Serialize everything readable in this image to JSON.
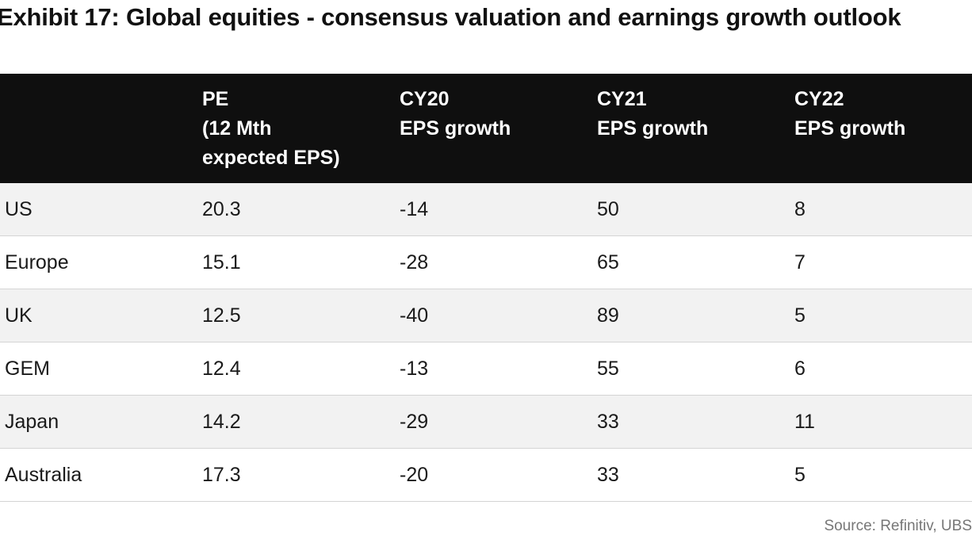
{
  "title": "Exhibit 17: Global equities - consensus valuation and earnings growth outlook",
  "table": {
    "headers": [
      "",
      "PE\n(12 Mth\nexpected EPS)",
      "CY20\nEPS growth",
      "CY21\nEPS growth",
      "CY22\nEPS growth"
    ],
    "rows": [
      [
        "US",
        "20.3",
        "-14",
        "50",
        "8"
      ],
      [
        "Europe",
        "15.1",
        "-28",
        "65",
        "7"
      ],
      [
        "UK",
        "12.5",
        "-40",
        "89",
        "5"
      ],
      [
        "GEM",
        "12.4",
        "-13",
        "55",
        "6"
      ],
      [
        "Japan",
        "14.2",
        "-29",
        "33",
        "11"
      ],
      [
        "Australia",
        "17.3",
        "-20",
        "33",
        "5"
      ]
    ]
  },
  "source": "Source: Refinitiv, UBS"
}
